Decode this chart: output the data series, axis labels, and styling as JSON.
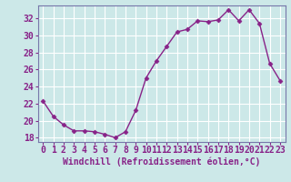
{
  "x": [
    0,
    1,
    2,
    3,
    4,
    5,
    6,
    7,
    8,
    9,
    10,
    11,
    12,
    13,
    14,
    15,
    16,
    17,
    18,
    19,
    20,
    21,
    22,
    23
  ],
  "y": [
    22.3,
    20.5,
    19.5,
    18.8,
    18.8,
    18.7,
    18.4,
    18.0,
    18.7,
    21.2,
    25.0,
    27.0,
    28.7,
    30.4,
    30.7,
    31.7,
    31.6,
    31.8,
    33.0,
    31.7,
    33.0,
    31.4,
    26.7,
    24.7
  ],
  "line_color": "#882288",
  "marker": "D",
  "marker_size": 2.5,
  "bg_color": "#cce8e8",
  "grid_color": "#b0d8d8",
  "xlabel": "Windchill (Refroidissement éolien,°C)",
  "xlabel_fontsize": 7,
  "tick_fontsize": 7,
  "ylim": [
    17.5,
    33.5
  ],
  "yticks": [
    18,
    20,
    22,
    24,
    26,
    28,
    30,
    32
  ],
  "xticks": [
    0,
    1,
    2,
    3,
    4,
    5,
    6,
    7,
    8,
    9,
    10,
    11,
    12,
    13,
    14,
    15,
    16,
    17,
    18,
    19,
    20,
    21,
    22,
    23
  ],
  "spine_color": "#7777aa",
  "line_width": 1.0
}
